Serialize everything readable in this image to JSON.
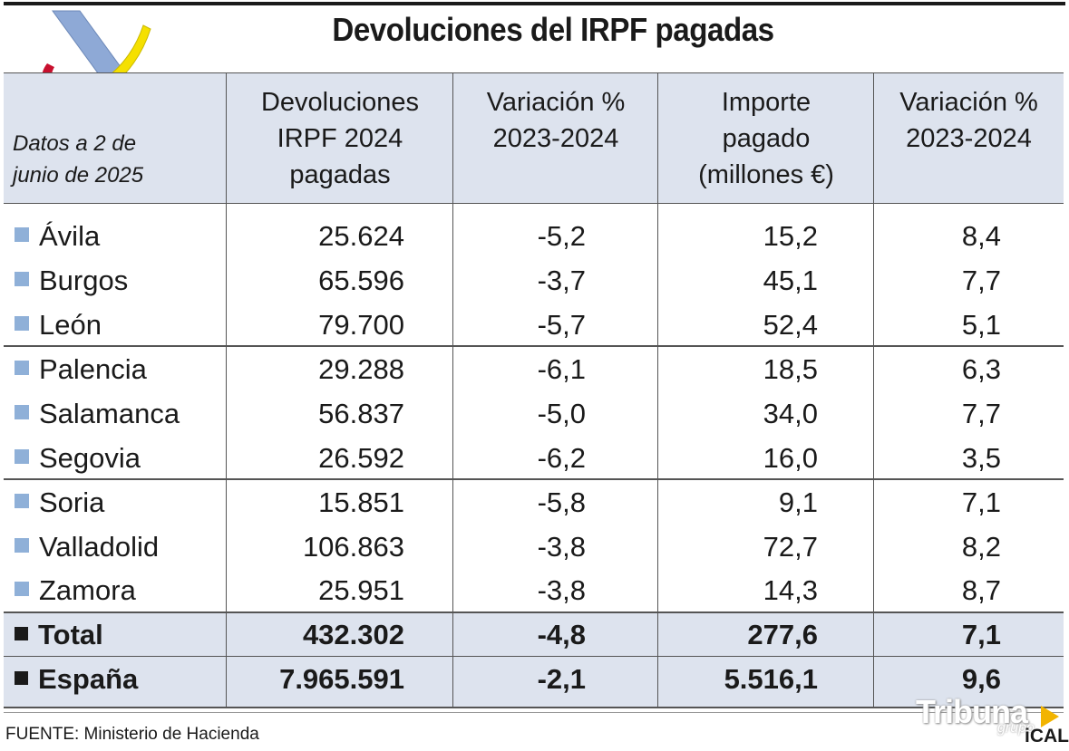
{
  "title": "Devoluciones del IRPF pagadas",
  "header": {
    "datos": [
      "Datos a 2 de",
      "junio de 2025"
    ],
    "col1": [
      "Devoluciones",
      "IRPF 2024",
      "pagadas"
    ],
    "col2": [
      "Variación %",
      "2023-2024"
    ],
    "col3": [
      "Importe",
      "pagado",
      "(millones €)"
    ],
    "col4": [
      "Variación %",
      "2023-2024"
    ]
  },
  "rows": [
    {
      "name": "Ávila",
      "devoluciones": "25.624",
      "var1": "-5,2",
      "importe": "15,2",
      "var2": "8,4"
    },
    {
      "name": "Burgos",
      "devoluciones": "65.596",
      "var1": "-3,7",
      "importe": "45,1",
      "var2": "7,7"
    },
    {
      "name": "León",
      "devoluciones": "79.700",
      "var1": "-5,7",
      "importe": "52,4",
      "var2": "5,1"
    },
    {
      "name": "Palencia",
      "devoluciones": "29.288",
      "var1": "-6,1",
      "importe": "18,5",
      "var2": "6,3"
    },
    {
      "name": "Salamanca",
      "devoluciones": "56.837",
      "var1": "-5,0",
      "importe": "34,0",
      "var2": "7,7"
    },
    {
      "name": "Segovia",
      "devoluciones": "26.592",
      "var1": "-6,2",
      "importe": "16,0",
      "var2": "3,5"
    },
    {
      "name": "Soria",
      "devoluciones": "15.851",
      "var1": "-5,8",
      "importe": "9,1",
      "var2": "7,1"
    },
    {
      "name": "Valladolid",
      "devoluciones": "106.863",
      "var1": "-3,8",
      "importe": "72,7",
      "var2": "8,2"
    },
    {
      "name": "Zamora",
      "devoluciones": "25.951",
      "var1": "-3,8",
      "importe": "14,3",
      "var2": "8,7"
    }
  ],
  "total": {
    "name": "Total",
    "devoluciones": "432.302",
    "var1": "-4,8",
    "importe": "277,6",
    "var2": "7,1"
  },
  "espana": {
    "name": "España",
    "devoluciones": "7.965.591",
    "var1": "-2,1",
    "importe": "5.516,1",
    "var2": "9,6"
  },
  "source": "FUENTE: Ministerio de Hacienda",
  "brand": {
    "tribuna": "Tribuna",
    "grupo": "grupo",
    "ical": "iCAL"
  },
  "colors": {
    "header_bg": "#dde3ee",
    "bullet": "#8fb0d8",
    "logo_blue": "#8ea9d6",
    "logo_yellow": "#f5e000",
    "logo_red": "#c8102e"
  }
}
